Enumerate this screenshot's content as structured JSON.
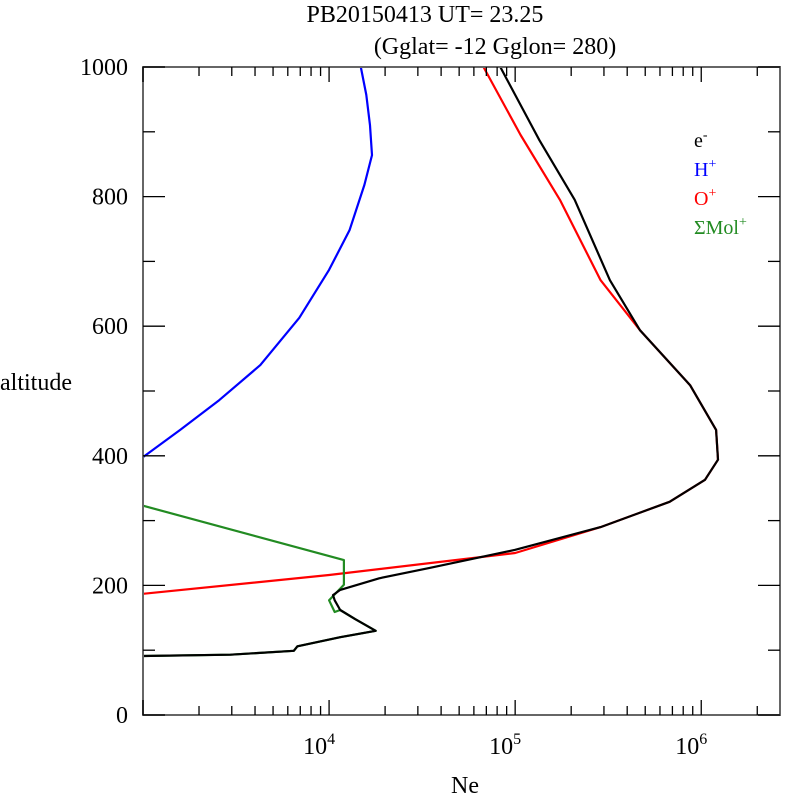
{
  "chart_data": {
    "type": "line",
    "title": "PB20150413   UT=  23.25",
    "subtitle": "(Gglat= -12   Gglon=  280)",
    "xlabel": "Ne",
    "ylabel": "altitude",
    "xscale": "log",
    "xlim": [
      1000,
      2650000
    ],
    "ylim": [
      0,
      1000
    ],
    "yticks": [
      "0",
      "200",
      "400",
      "600",
      "800",
      "1000"
    ],
    "xticks": [
      {
        "base": "10",
        "exp": "4",
        "value": 10000
      },
      {
        "base": "10",
        "exp": "5",
        "value": 100000
      },
      {
        "base": "10",
        "exp": "6",
        "value": 1000000
      }
    ],
    "legend_position": "top-right",
    "series": [
      {
        "name": "e",
        "sup": "-",
        "color": "#000000",
        "points": [
          [
            1000,
            91
          ],
          [
            2950,
            93
          ],
          [
            6460,
            99
          ],
          [
            6760,
            106
          ],
          [
            11480,
            120
          ],
          [
            17800,
            130
          ],
          [
            13800,
            148
          ],
          [
            11480,
            162
          ],
          [
            10720,
            177
          ],
          [
            10500,
            185
          ],
          [
            11480,
            193
          ],
          [
            18600,
            211
          ],
          [
            34700,
            227
          ],
          [
            100000,
            255
          ],
          [
            288000,
            290
          ],
          [
            676000,
            329
          ],
          [
            1047000,
            363
          ],
          [
            1230000,
            394
          ],
          [
            1202000,
            440
          ],
          [
            871000,
            509
          ],
          [
            468000,
            594
          ],
          [
            323000,
            671
          ],
          [
            209000,
            795
          ],
          [
            135000,
            887
          ],
          [
            83200,
            1000
          ]
        ]
      },
      {
        "name": "H",
        "sup": "+",
        "color": "#0000ff",
        "points": [
          [
            1000,
            398
          ],
          [
            1585,
            440
          ],
          [
            2570,
            486
          ],
          [
            4270,
            540
          ],
          [
            6920,
            613
          ],
          [
            10000,
            687
          ],
          [
            12880,
            748
          ],
          [
            15490,
            818
          ],
          [
            17000,
            864
          ],
          [
            16600,
            910
          ],
          [
            15850,
            957
          ],
          [
            14800,
            1000
          ]
        ]
      },
      {
        "name": "O",
        "sup": "+",
        "color": "#ff0000",
        "points": [
          [
            1000,
            187
          ],
          [
            10000,
            216
          ],
          [
            100000,
            250
          ],
          [
            288000,
            290
          ],
          [
            676000,
            329
          ],
          [
            1047000,
            363
          ],
          [
            1230000,
            394
          ],
          [
            1202000,
            440
          ],
          [
            871000,
            509
          ],
          [
            468000,
            594
          ],
          [
            288000,
            671
          ],
          [
            174000,
            795
          ],
          [
            107000,
            895
          ],
          [
            67600,
            1000
          ]
        ]
      },
      {
        "name": "ΣMol",
        "sup": "+",
        "color": "#228b22",
        "points": [
          [
            1000,
            323
          ],
          [
            12020,
            239
          ],
          [
            12020,
            201
          ],
          [
            10000,
            177
          ],
          [
            10720,
            159
          ],
          [
            11480,
            162
          ],
          [
            13800,
            148
          ],
          [
            17800,
            130
          ],
          [
            11480,
            120
          ],
          [
            6760,
            106
          ],
          [
            6460,
            99
          ],
          [
            2950,
            93
          ],
          [
            1000,
            91
          ]
        ]
      }
    ]
  }
}
